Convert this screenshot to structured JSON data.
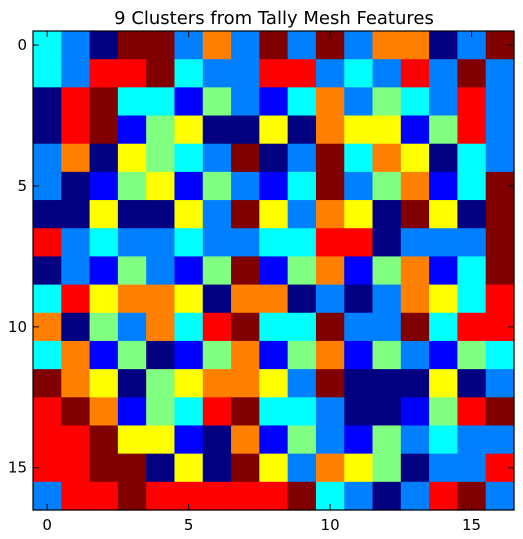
{
  "chart_data": {
    "type": "heatmap",
    "title": "9 Clusters from Tally Mesh Features",
    "xlabel": "",
    "ylabel": "",
    "xlim": [
      -0.5,
      16.5
    ],
    "ylim": [
      16.5,
      -0.5
    ],
    "xticks": [
      0,
      5,
      10,
      15
    ],
    "yticks": [
      0,
      5,
      10,
      15
    ],
    "grid": false,
    "colormap": "jet",
    "cluster_colors": [
      "#000080",
      "#0000ff",
      "#0080ff",
      "#00ffff",
      "#80ff80",
      "#ffff00",
      "#ff8000",
      "#ff0000",
      "#800000"
    ],
    "cluster_values": [
      [
        3,
        2,
        0,
        8,
        8,
        2,
        6,
        2,
        8,
        2,
        8,
        2,
        6,
        6,
        0,
        2,
        8
      ],
      [
        3,
        2,
        7,
        7,
        8,
        3,
        2,
        2,
        7,
        7,
        2,
        3,
        2,
        7,
        2,
        8,
        2
      ],
      [
        0,
        7,
        8,
        3,
        3,
        1,
        4,
        2,
        1,
        3,
        6,
        2,
        4,
        3,
        2,
        7,
        2
      ],
      [
        0,
        7,
        8,
        1,
        4,
        5,
        0,
        0,
        5,
        0,
        6,
        5,
        5,
        1,
        4,
        7,
        2
      ],
      [
        2,
        6,
        0,
        5,
        4,
        3,
        2,
        8,
        0,
        2,
        8,
        3,
        6,
        5,
        0,
        3,
        2
      ],
      [
        2,
        0,
        1,
        4,
        5,
        1,
        4,
        2,
        1,
        3,
        8,
        2,
        4,
        6,
        1,
        3,
        8
      ],
      [
        0,
        0,
        5,
        0,
        0,
        5,
        2,
        8,
        5,
        2,
        6,
        5,
        0,
        8,
        5,
        0,
        8
      ],
      [
        7,
        2,
        3,
        2,
        2,
        3,
        2,
        2,
        3,
        3,
        7,
        7,
        0,
        2,
        2,
        2,
        8
      ],
      [
        0,
        2,
        1,
        4,
        2,
        1,
        4,
        8,
        1,
        4,
        6,
        1,
        4,
        6,
        1,
        3,
        8
      ],
      [
        3,
        7,
        5,
        6,
        6,
        5,
        0,
        6,
        6,
        0,
        2,
        0,
        2,
        6,
        5,
        3,
        7
      ],
      [
        6,
        0,
        4,
        2,
        6,
        3,
        7,
        8,
        3,
        3,
        8,
        2,
        2,
        8,
        3,
        7,
        7
      ],
      [
        3,
        6,
        1,
        4,
        0,
        1,
        4,
        6,
        1,
        4,
        6,
        1,
        4,
        2,
        1,
        4,
        3
      ],
      [
        8,
        6,
        5,
        0,
        4,
        5,
        6,
        6,
        5,
        2,
        8,
        0,
        0,
        0,
        5,
        0,
        2
      ],
      [
        7,
        8,
        6,
        1,
        4,
        3,
        7,
        8,
        3,
        3,
        2,
        0,
        0,
        1,
        4,
        7,
        8
      ],
      [
        7,
        7,
        8,
        5,
        5,
        1,
        0,
        6,
        1,
        4,
        2,
        1,
        4,
        2,
        3,
        2,
        2
      ],
      [
        7,
        7,
        8,
        8,
        0,
        5,
        0,
        8,
        5,
        2,
        6,
        5,
        4,
        0,
        2,
        2,
        7
      ],
      [
        2,
        7,
        7,
        8,
        7,
        7,
        7,
        7,
        7,
        8,
        3,
        2,
        0,
        2,
        7,
        8,
        2
      ]
    ]
  }
}
